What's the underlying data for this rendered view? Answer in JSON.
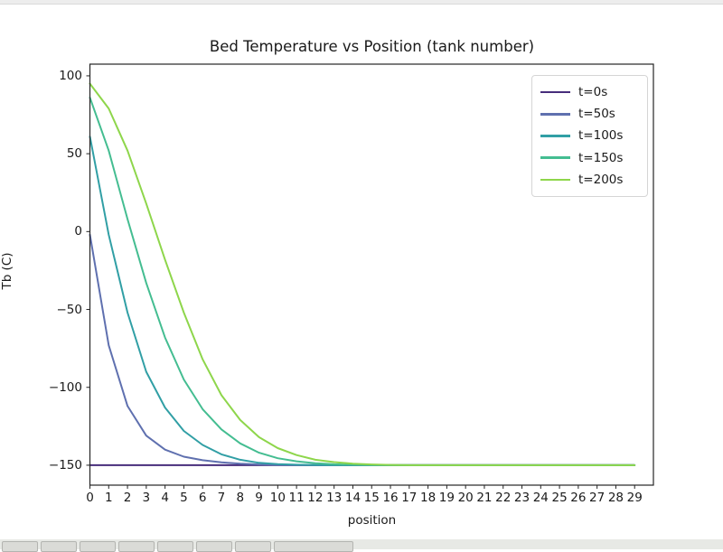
{
  "window": {
    "top_strip": {
      "color": "#ededed",
      "border_color": "#dadada"
    },
    "taskbar": {
      "bg_color": "#e7e9e5",
      "button_color": "#dadbd7",
      "button_border_color": "#b3b4b0",
      "small_button_count": 7,
      "wide_button_present": true
    }
  },
  "chart_data": {
    "type": "line",
    "title": "Bed Temperature vs Position (tank number)",
    "xlabel": "position",
    "ylabel": "Tb (C)",
    "xlim": [
      0,
      30
    ],
    "ylim": [
      -162.8,
      107.5
    ],
    "grid": false,
    "legend_position": "upper right",
    "axis_color": "#242424",
    "x_tick_labels": [
      "0",
      "1",
      "2",
      "3",
      "4",
      "5",
      "6",
      "7",
      "8",
      "9",
      "10",
      "11",
      "12",
      "13",
      "14",
      "15",
      "16",
      "17",
      "18",
      "19",
      "20",
      "21",
      "22",
      "23",
      "24",
      "25",
      "26",
      "27",
      "28",
      "29"
    ],
    "y_tick_labels": [
      "100",
      "50",
      "0",
      "−50",
      "−100",
      "−150"
    ],
    "y_tick_values": [
      100,
      50,
      0,
      -50,
      -100,
      -150
    ],
    "x": [
      0,
      1,
      2,
      3,
      4,
      5,
      6,
      7,
      8,
      9,
      10,
      11,
      12,
      13,
      14,
      15,
      16,
      17,
      18,
      19,
      20,
      21,
      22,
      23,
      24,
      25,
      26,
      27,
      28,
      29
    ],
    "series": [
      {
        "name": "t=0s",
        "color": "#472d7b",
        "values": [
          -150,
          -150,
          -150,
          -150,
          -150,
          -150,
          -150,
          -150,
          -150,
          -150,
          -150,
          -150,
          -150,
          -150,
          -150,
          -150,
          -150,
          -150,
          -150,
          -150,
          -150,
          -150,
          -150,
          -150,
          -150,
          -150,
          -150,
          -150,
          -150,
          -150
        ]
      },
      {
        "name": "t=50s",
        "color": "#5f70af",
        "values": [
          -2,
          -73,
          -112,
          -131,
          -140,
          -144.5,
          -146.8,
          -148.2,
          -149,
          -149.5,
          -149.8,
          -150,
          -150,
          -150,
          -150,
          -150,
          -150,
          -150,
          -150,
          -150,
          -150,
          -150,
          -150,
          -150,
          -150,
          -150,
          -150,
          -150,
          -150,
          -150
        ]
      },
      {
        "name": "t=100s",
        "color": "#319fa5",
        "values": [
          61,
          -2,
          -52,
          -90,
          -113,
          -128,
          -137,
          -143,
          -146.5,
          -148.5,
          -149.3,
          -149.7,
          -149.9,
          -150,
          -150,
          -150,
          -150,
          -150,
          -150,
          -150,
          -150,
          -150,
          -150,
          -150,
          -150,
          -150,
          -150,
          -150,
          -150,
          -150
        ]
      },
      {
        "name": "t=150s",
        "color": "#44bd91",
        "values": [
          86,
          52,
          8,
          -33,
          -68,
          -95,
          -114,
          -127,
          -136,
          -142,
          -145.5,
          -147.5,
          -148.7,
          -149.4,
          -149.7,
          -149.9,
          -150,
          -150,
          -150,
          -150,
          -150,
          -150,
          -150,
          -150,
          -150,
          -150,
          -150,
          -150,
          -150,
          -150
        ]
      },
      {
        "name": "t=200s",
        "color": "#8ed64b",
        "values": [
          95,
          79,
          52,
          18,
          -18,
          -52,
          -82,
          -105,
          -121,
          -132,
          -139,
          -143.5,
          -146.5,
          -148,
          -149,
          -149.5,
          -149.8,
          -150,
          -150,
          -150,
          -150,
          -150,
          -150,
          -150,
          -150,
          -150,
          -150,
          -150,
          -150,
          -150
        ]
      }
    ]
  }
}
